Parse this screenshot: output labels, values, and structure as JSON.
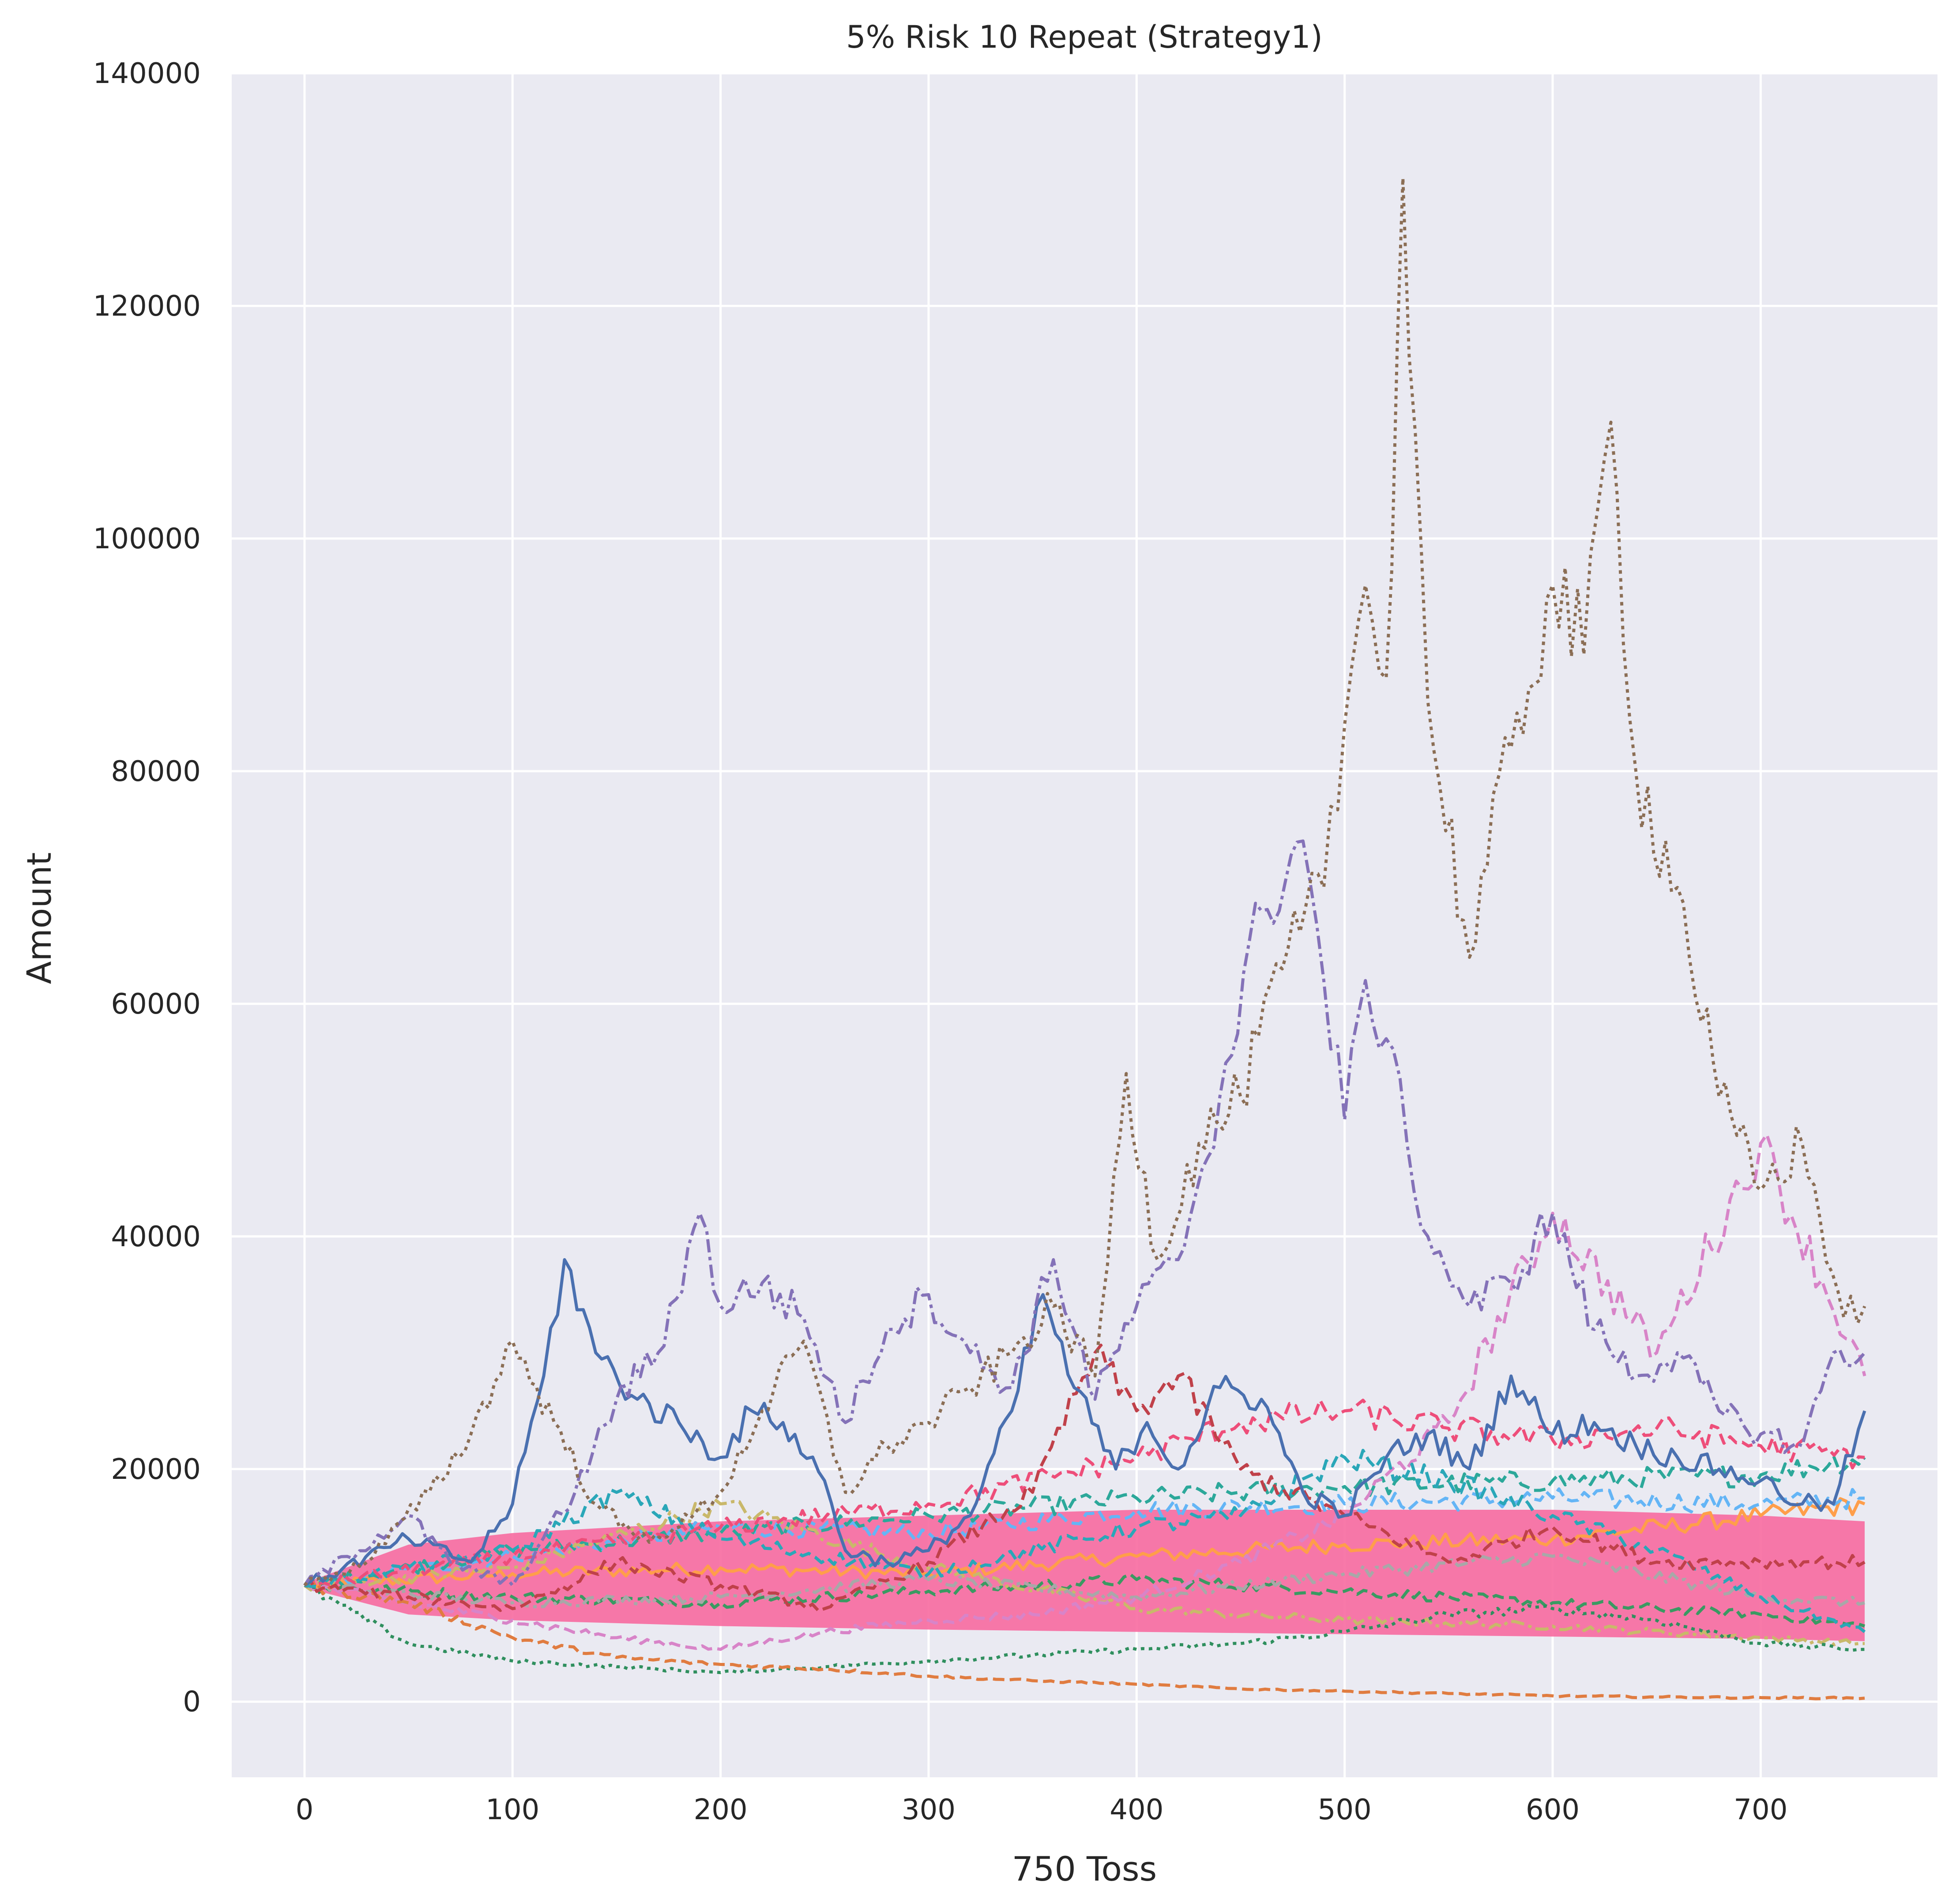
{
  "chart_data": {
    "type": "line",
    "title": "5% Risk 10 Repeat (Strategy1)",
    "xlabel": "750 Toss",
    "ylabel": "Amount",
    "xlim": [
      -35,
      785
    ],
    "ylim": [
      -6500,
      140000
    ],
    "xticks": [
      0,
      100,
      200,
      300,
      400,
      500,
      600,
      700
    ],
    "yticks": [
      0,
      20000,
      40000,
      60000,
      80000,
      100000,
      120000,
      140000
    ],
    "xtick_labels": [
      "0",
      "100",
      "200",
      "300",
      "400",
      "500",
      "600",
      "700"
    ],
    "ytick_labels": [
      "0",
      "20000",
      "40000",
      "60000",
      "80000",
      "100000",
      "120000",
      "140000"
    ],
    "grid": true,
    "background": "#eaeaf2",
    "grid_color": "#ffffff",
    "band": {
      "color": "#f7679d",
      "upper": {
        "x": [
          0,
          50,
          100,
          200,
          300,
          400,
          500,
          600,
          700,
          750
        ],
        "values": [
          10200,
          13500,
          14500,
          15500,
          16000,
          16500,
          16500,
          16500,
          16000,
          15500
        ]
      },
      "lower": {
        "x": [
          0,
          50,
          100,
          200,
          300,
          400,
          500,
          600,
          700,
          750
        ],
        "values": [
          9800,
          7500,
          7000,
          6500,
          6200,
          6000,
          5800,
          5600,
          5400,
          5200
        ]
      }
    },
    "series": [
      {
        "color": "#ff9e4a",
        "dash": "solid",
        "x": [
          0,
          100,
          200,
          300,
          400,
          500,
          600,
          700,
          750
        ],
        "values": [
          10000,
          11000,
          11500,
          11000,
          12500,
          13500,
          14000,
          16000,
          17000
        ]
      },
      {
        "color": "#64b5f6",
        "dash": "dashed",
        "x": [
          0,
          100,
          200,
          300,
          400,
          500,
          600,
          700,
          750
        ],
        "values": [
          10000,
          12500,
          15000,
          14500,
          16500,
          17000,
          17500,
          17000,
          17500
        ]
      },
      {
        "color": "#2ca89a",
        "dash": "dashed",
        "x": [
          0,
          100,
          200,
          300,
          400,
          500,
          600,
          700,
          750
        ],
        "values": [
          10000,
          13000,
          14500,
          16000,
          17500,
          18500,
          19000,
          19500,
          21000
        ]
      },
      {
        "color": "#3a9a62",
        "dash": "dashed",
        "x": [
          0,
          100,
          200,
          300,
          400,
          500,
          600,
          700,
          750
        ],
        "values": [
          10000,
          9000,
          8500,
          9500,
          10500,
          9500,
          8500,
          7500,
          6500
        ]
      },
      {
        "color": "#c9b86a",
        "dash": "dashdot",
        "x": [
          0,
          100,
          200,
          300,
          400,
          500,
          600,
          700,
          750
        ],
        "values": [
          10000,
          11500,
          17000,
          11500,
          8000,
          7000,
          6500,
          5500,
          5000
        ]
      },
      {
        "color": "#a8a8a8",
        "dash": "dashdot",
        "x": [
          0,
          100,
          200,
          300,
          400,
          500,
          600,
          700,
          750
        ],
        "values": [
          10000,
          8500,
          9000,
          10500,
          9000,
          11000,
          12500,
          9000,
          8500
        ]
      },
      {
        "color": "#d884c8",
        "dash": "dashed",
        "x": [
          0,
          50,
          100,
          150,
          200,
          250,
          300,
          350,
          400,
          450,
          500,
          550,
          600,
          650,
          700,
          750
        ],
        "values": [
          10000,
          8500,
          7000,
          5500,
          4500,
          6000,
          7000,
          7500,
          9000,
          12000,
          16000,
          24000,
          42000,
          30000,
          48000,
          28000
        ]
      },
      {
        "color": "#2f8f5e",
        "dash": "dotted",
        "x": [
          0,
          50,
          100,
          150,
          200,
          250,
          300,
          350,
          400,
          450,
          500,
          550,
          600,
          650,
          700,
          750
        ],
        "values": [
          10000,
          5000,
          3500,
          3000,
          2500,
          3000,
          3500,
          4000,
          4500,
          5000,
          6000,
          7500,
          8000,
          7000,
          5000,
          4500
        ]
      },
      {
        "color": "#e07c40",
        "dash": "dashed",
        "x": [
          0,
          50,
          100,
          150,
          200,
          250,
          300,
          350,
          400,
          450,
          500,
          550,
          600,
          650,
          700,
          750
        ],
        "values": [
          10000,
          8500,
          5500,
          3800,
          3200,
          2800,
          2200,
          1800,
          1500,
          1100,
          900,
          700,
          500,
          400,
          350,
          300
        ]
      },
      {
        "color": "#2aa7b8",
        "dash": "dashed",
        "x": [
          0,
          100,
          150,
          200,
          300,
          400,
          450,
          500,
          550,
          600,
          650,
          700,
          750
        ],
        "values": [
          10000,
          13000,
          18000,
          14000,
          11000,
          15000,
          16000,
          21000,
          19000,
          16000,
          13000,
          9000,
          6000
        ]
      },
      {
        "color": "#ee4e7a",
        "dash": "dashed",
        "x": [
          0,
          100,
          200,
          300,
          400,
          450,
          500,
          550,
          600,
          650,
          700,
          750
        ],
        "values": [
          10000,
          12500,
          15000,
          17000,
          21000,
          24000,
          25000,
          23500,
          22500,
          23500,
          22000,
          21000
        ]
      },
      {
        "color": "#c0414a",
        "dash": "dashed",
        "x": [
          0,
          50,
          100,
          150,
          200,
          250,
          300,
          350,
          380,
          400,
          420,
          450,
          500,
          550,
          600,
          650,
          700,
          750
        ],
        "values": [
          10000,
          9000,
          8000,
          12000,
          10000,
          8000,
          12000,
          18000,
          30000,
          25000,
          28000,
          20000,
          16000,
          12000,
          15000,
          12000,
          12000,
          12000
        ]
      },
      {
        "color": "#4a70b0",
        "dash": "solid",
        "x": [
          0,
          50,
          80,
          100,
          115,
          125,
          140,
          160,
          180,
          200,
          215,
          230,
          250,
          260,
          280,
          300,
          320,
          340,
          355,
          370,
          390,
          405,
          420,
          440,
          460,
          480,
          500,
          520,
          540,
          560,
          580,
          600,
          620,
          640,
          660,
          680,
          700,
          720,
          735,
          750
        ],
        "values": [
          10000,
          14000,
          12000,
          17000,
          28000,
          38000,
          30000,
          26000,
          24000,
          21000,
          25000,
          24000,
          19000,
          13000,
          12000,
          13000,
          16000,
          25000,
          35000,
          27000,
          20000,
          24000,
          20000,
          27000,
          26000,
          18000,
          16000,
          21000,
          23000,
          20000,
          28000,
          23000,
          24000,
          22000,
          21000,
          20000,
          19000,
          17000,
          17000,
          25000
        ]
      },
      {
        "color": "#8472b8",
        "dash": "dashdot",
        "x": [
          0,
          50,
          70,
          100,
          130,
          150,
          170,
          190,
          200,
          220,
          240,
          260,
          280,
          300,
          320,
          340,
          360,
          380,
          400,
          420,
          440,
          460,
          480,
          490,
          500,
          510,
          520,
          530,
          540,
          560,
          580,
          600,
          620,
          640,
          660,
          680,
          700,
          720,
          735,
          750
        ],
        "values": [
          10000,
          16000,
          12000,
          10000,
          18000,
          26000,
          30000,
          42000,
          34000,
          36000,
          33000,
          24000,
          32000,
          35000,
          30000,
          27000,
          38000,
          26000,
          34000,
          38000,
          52000,
          68000,
          74000,
          62000,
          50000,
          62000,
          57000,
          48000,
          40000,
          34000,
          36000,
          42000,
          32000,
          28000,
          30000,
          25000,
          23000,
          22000,
          30000,
          30000
        ]
      },
      {
        "color": "#8b6e55",
        "dash": "dotted",
        "x": [
          0,
          30,
          60,
          80,
          100,
          120,
          140,
          160,
          180,
          200,
          220,
          240,
          260,
          280,
          300,
          320,
          340,
          360,
          380,
          395,
          410,
          430,
          450,
          470,
          490,
          500,
          510,
          520,
          528,
          540,
          560,
          580,
          600,
          615,
          628,
          640,
          660,
          680,
          700,
          720,
          740,
          750
        ],
        "values": [
          10000,
          12000,
          18000,
          23000,
          31000,
          24000,
          17000,
          14000,
          15000,
          18000,
          25000,
          31000,
          18000,
          22000,
          24000,
          27000,
          30000,
          34000,
          28000,
          54000,
          38000,
          48000,
          52000,
          63000,
          70000,
          84000,
          96000,
          88000,
          131000,
          86000,
          64000,
          82000,
          96000,
          90000,
          110000,
          80000,
          70000,
          52000,
          44000,
          48000,
          33000,
          34000
        ]
      }
    ]
  }
}
